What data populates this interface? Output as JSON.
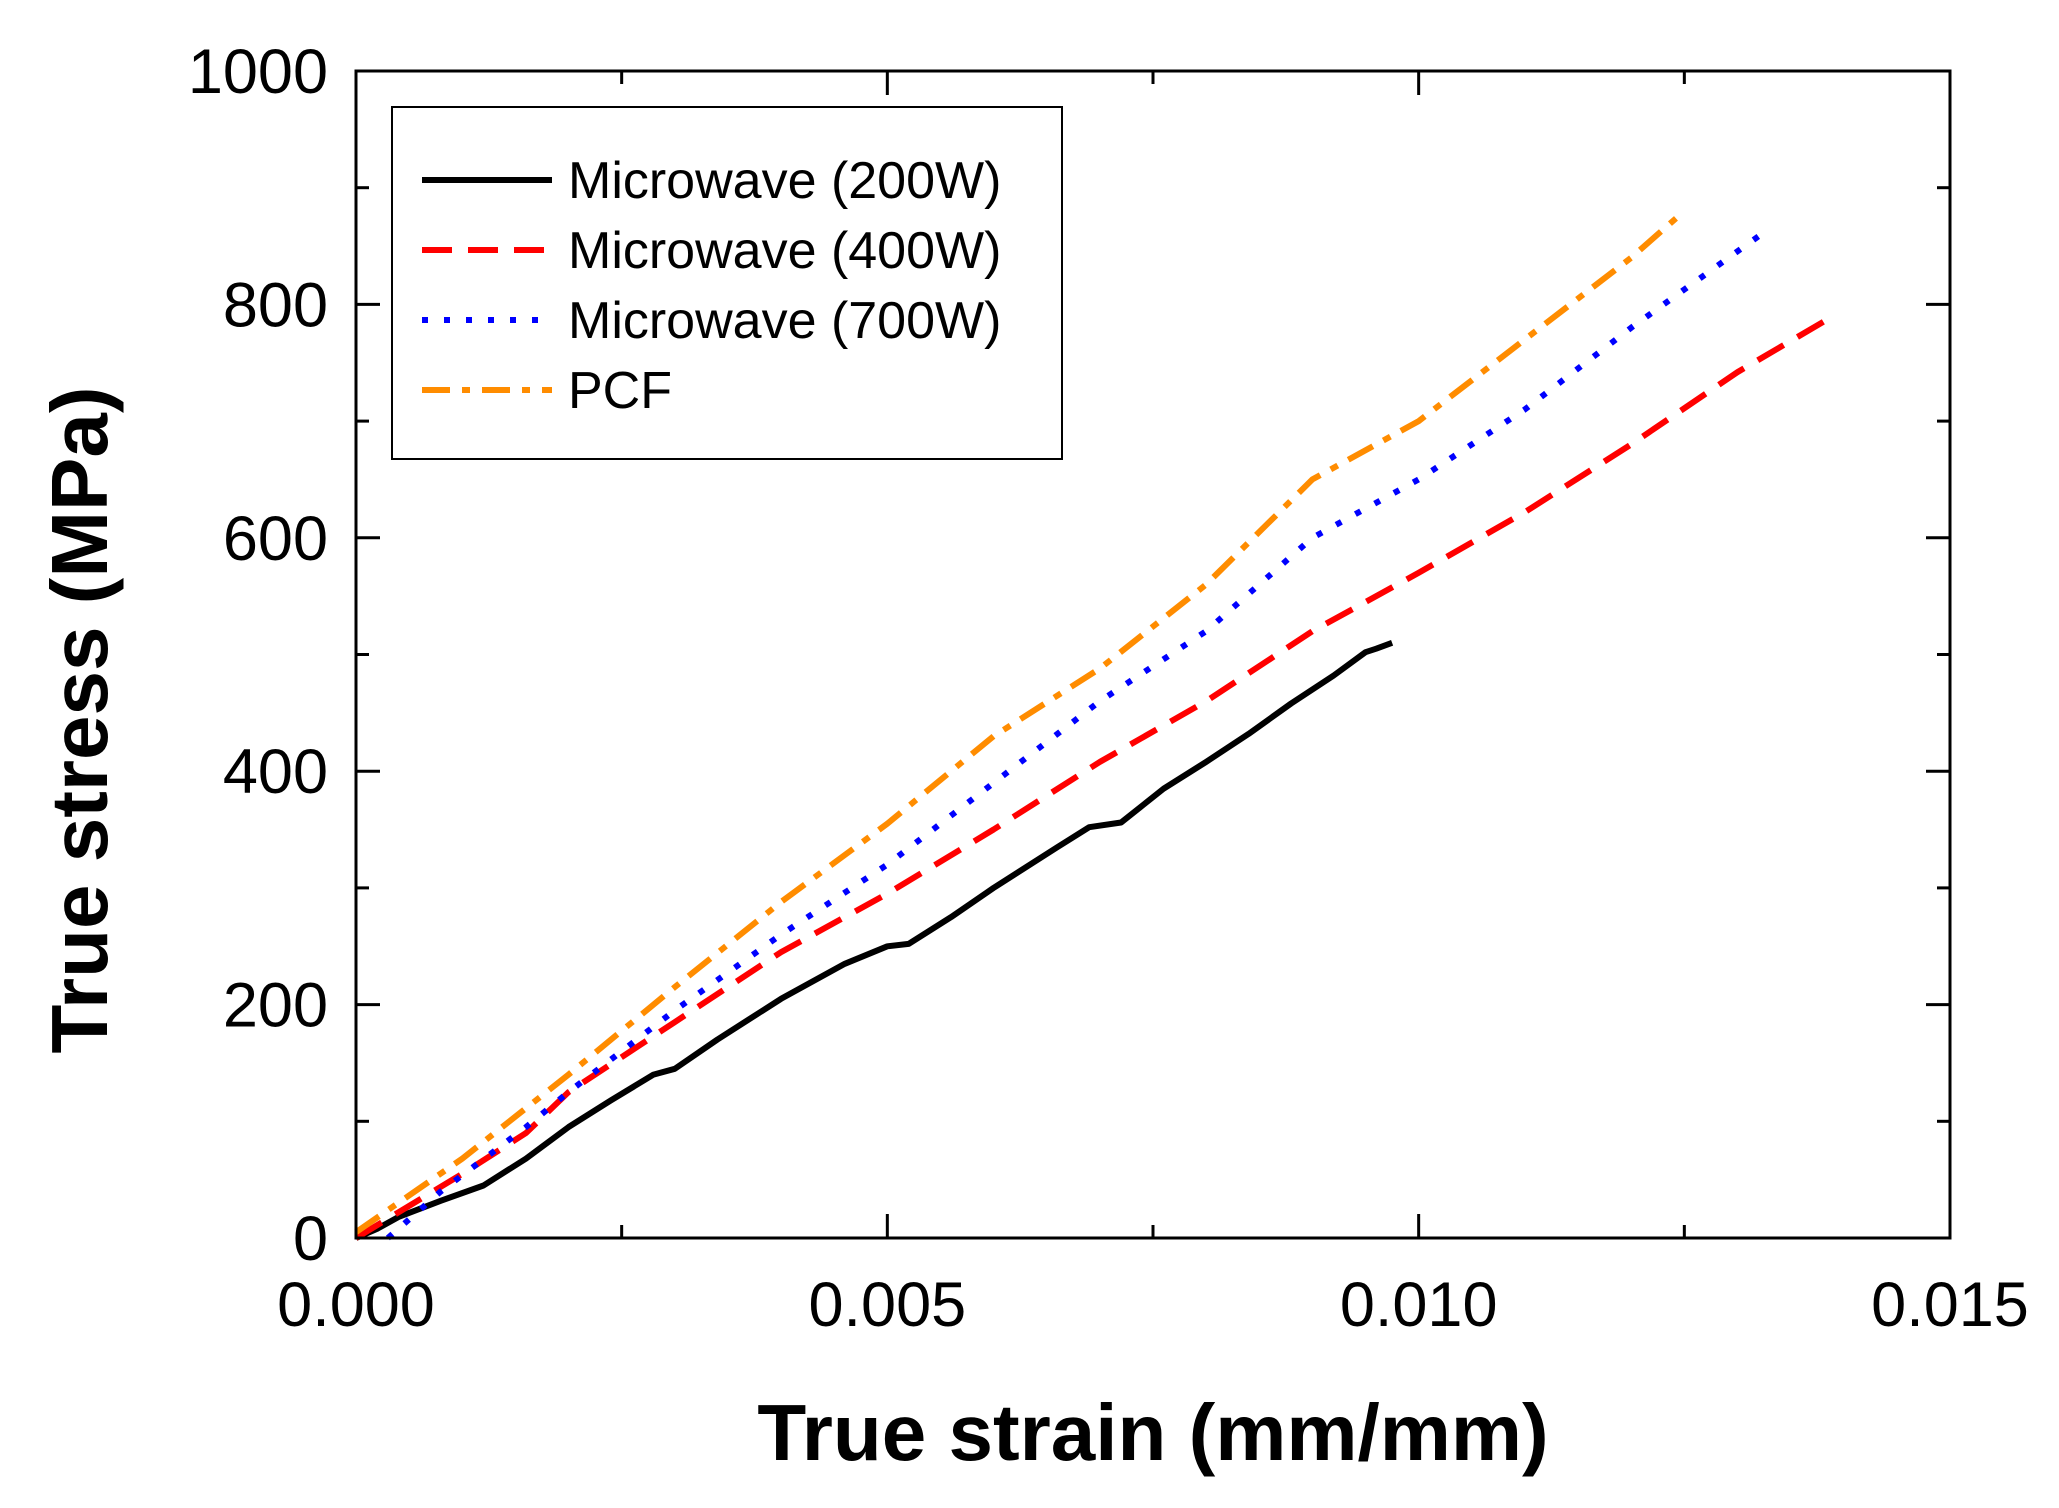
{
  "chart_data": {
    "type": "line",
    "title": "",
    "xlabel": "True strain (mm/mm)",
    "ylabel": "True stress (MPa)",
    "xlim": [
      0,
      0.015
    ],
    "ylim": [
      0,
      1000
    ],
    "x_ticks": [
      {
        "value": 0.0,
        "label": "0.000"
      },
      {
        "value": 0.005,
        "label": "0.005"
      },
      {
        "value": 0.01,
        "label": "0.010"
      },
      {
        "value": 0.015,
        "label": "0.015"
      }
    ],
    "y_ticks": [
      {
        "value": 0,
        "label": "0"
      },
      {
        "value": 200,
        "label": "200"
      },
      {
        "value": 400,
        "label": "400"
      },
      {
        "value": 600,
        "label": "600"
      },
      {
        "value": 800,
        "label": "800"
      },
      {
        "value": 1000,
        "label": "1000"
      }
    ],
    "x_minor_step": 0.0025,
    "y_minor_step": 100,
    "grid": false,
    "legend_position": "top-left",
    "series": [
      {
        "name": "Microwave (200W)",
        "color": "#000000",
        "dash": "solid",
        "points": [
          [
            0.0,
            0
          ],
          [
            0.0002,
            8
          ],
          [
            0.0004,
            18
          ],
          [
            0.0006,
            25
          ],
          [
            0.0008,
            32
          ],
          [
            0.0012,
            45
          ],
          [
            0.0016,
            68
          ],
          [
            0.002,
            95
          ],
          [
            0.0024,
            118
          ],
          [
            0.0028,
            140
          ],
          [
            0.003,
            145
          ],
          [
            0.0034,
            170
          ],
          [
            0.004,
            205
          ],
          [
            0.0046,
            235
          ],
          [
            0.005,
            250
          ],
          [
            0.0052,
            252
          ],
          [
            0.0056,
            275
          ],
          [
            0.006,
            300
          ],
          [
            0.0066,
            335
          ],
          [
            0.0069,
            352
          ],
          [
            0.0072,
            356
          ],
          [
            0.0076,
            385
          ],
          [
            0.008,
            408
          ],
          [
            0.0084,
            432
          ],
          [
            0.0088,
            458
          ],
          [
            0.0092,
            482
          ],
          [
            0.0095,
            502
          ],
          [
            0.0096,
            505
          ],
          [
            0.00975,
            510
          ]
        ]
      },
      {
        "name": "Microwave (400W)",
        "color": "#ff0000",
        "dash": "dashed",
        "points": [
          [
            0.0,
            0
          ],
          [
            0.0004,
            22
          ],
          [
            0.001,
            55
          ],
          [
            0.0016,
            90
          ],
          [
            0.002,
            125
          ],
          [
            0.003,
            185
          ],
          [
            0.004,
            245
          ],
          [
            0.005,
            295
          ],
          [
            0.006,
            350
          ],
          [
            0.007,
            408
          ],
          [
            0.008,
            460
          ],
          [
            0.009,
            520
          ],
          [
            0.01,
            570
          ],
          [
            0.011,
            622
          ],
          [
            0.012,
            680
          ],
          [
            0.013,
            742
          ],
          [
            0.0139,
            790
          ]
        ]
      },
      {
        "name": "Microwave (700W)",
        "color": "#0000ff",
        "dash": "dotted",
        "points": [
          [
            0.0003,
            0
          ],
          [
            0.0008,
            40
          ],
          [
            0.0016,
            95
          ],
          [
            0.002,
            125
          ],
          [
            0.003,
            195
          ],
          [
            0.004,
            260
          ],
          [
            0.005,
            320
          ],
          [
            0.006,
            390
          ],
          [
            0.007,
            460
          ],
          [
            0.008,
            520
          ],
          [
            0.009,
            600
          ],
          [
            0.01,
            650
          ],
          [
            0.011,
            710
          ],
          [
            0.012,
            780
          ],
          [
            0.0133,
            865
          ]
        ]
      },
      {
        "name": "PCF",
        "color": "#ff8c00",
        "dash": "dashdot",
        "points": [
          [
            0.0,
            5
          ],
          [
            0.001,
            68
          ],
          [
            0.002,
            140
          ],
          [
            0.003,
            215
          ],
          [
            0.004,
            288
          ],
          [
            0.005,
            355
          ],
          [
            0.006,
            430
          ],
          [
            0.007,
            488
          ],
          [
            0.008,
            560
          ],
          [
            0.009,
            650
          ],
          [
            0.01,
            700
          ],
          [
            0.011,
            770
          ],
          [
            0.012,
            840
          ],
          [
            0.0125,
            880
          ]
        ]
      }
    ]
  }
}
